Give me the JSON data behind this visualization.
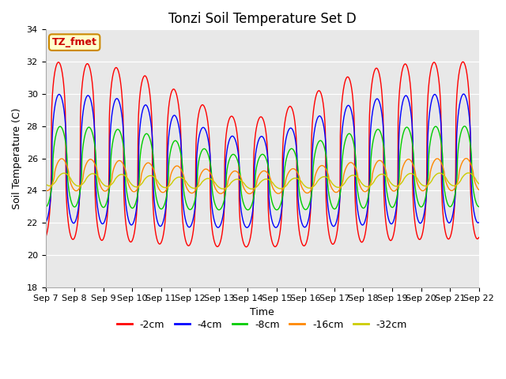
{
  "title": "Tonzi Soil Temperature Set D",
  "xlabel": "Time",
  "ylabel": "Soil Temperature (C)",
  "ylim": [
    18,
    34
  ],
  "n_days": 15,
  "xtick_labels": [
    "Sep 7",
    "Sep 8",
    "Sep 9",
    "Sep 10",
    "Sep 11",
    "Sep 12",
    "Sep 13",
    "Sep 14",
    "Sep 15",
    "Sep 16",
    "Sep 17",
    "Sep 18",
    "Sep 19",
    "Sep 20",
    "Sep 21",
    "Sep 22"
  ],
  "ytick_values": [
    18,
    20,
    22,
    24,
    26,
    28,
    30,
    32,
    34
  ],
  "series_labels": [
    "-2cm",
    "-4cm",
    "-8cm",
    "-16cm",
    "-32cm"
  ],
  "series_colors": [
    "#ff0000",
    "#0000ff",
    "#00cc00",
    "#ff8800",
    "#cccc00"
  ],
  "background_color": "#e8e8e8",
  "annotation_text": "TZ_fmet",
  "annotation_bg": "#ffffcc",
  "annotation_border": "#cc8800",
  "annotation_color": "#cc0000",
  "title_fontsize": 12,
  "axis_label_fontsize": 9,
  "tick_fontsize": 8,
  "legend_fontsize": 9,
  "linewidth": 1.0
}
